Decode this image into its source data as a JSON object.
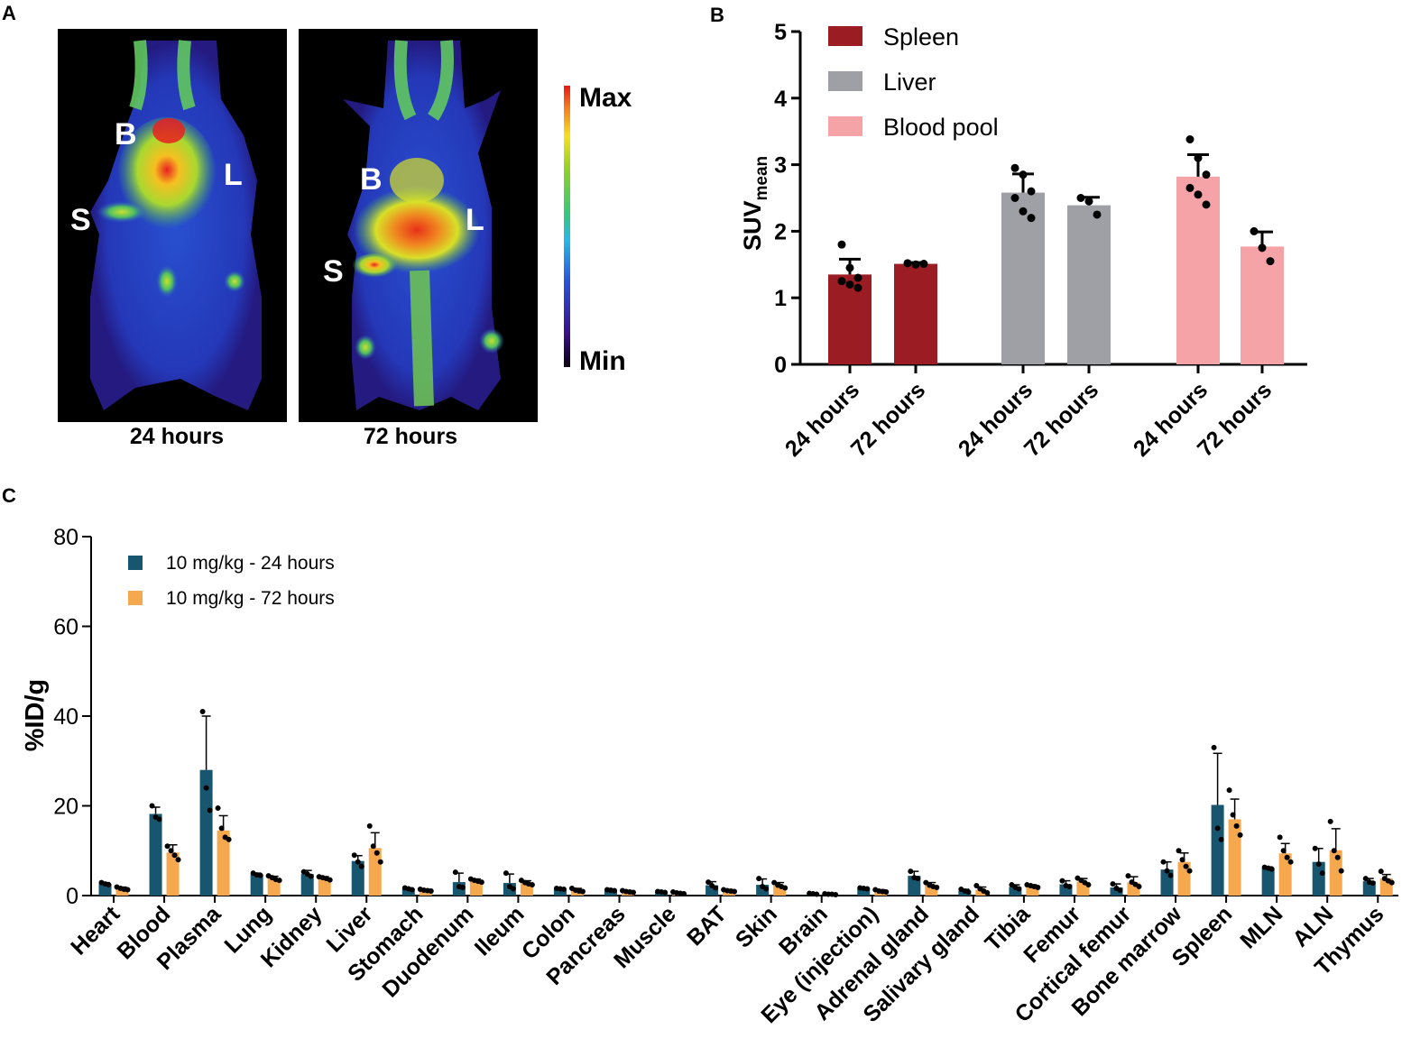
{
  "panel_a": {
    "letter": "A",
    "images": [
      {
        "caption": "24 hours",
        "labels": {
          "B": "B",
          "L": "L",
          "S": "S"
        }
      },
      {
        "caption": "72 hours",
        "labels": {
          "B": "B",
          "L": "L",
          "S": "S"
        }
      }
    ],
    "colorbar": {
      "max_label": "Max",
      "min_label": "Min"
    }
  },
  "panel_b": {
    "letter": "B",
    "colors": {
      "Spleen": "#9b1c22",
      "Liver": "#9fa0a5",
      "Blood pool": "#f5a3a7"
    }
  },
  "panel_c": {
    "letter": "C",
    "colors": {
      "24h": "#17566e",
      "72h": "#f6a84e"
    }
  },
  "chart_data": [
    {
      "id": "B",
      "type": "bar",
      "ylabel": "SUV",
      "ylabel_subscript": "mean",
      "ylim": [
        0,
        5
      ],
      "yticks": [
        "0",
        "1",
        "2",
        "3",
        "4",
        "5"
      ],
      "legend": [
        "Spleen",
        "Liver",
        "Blood pool"
      ],
      "groups": [
        {
          "name": "Spleen",
          "bars": [
            {
              "label": "24 hours",
              "value": 1.35,
              "error": 0.23,
              "points": [
                1.8,
                1.45,
                1.3,
                1.25,
                1.2,
                1.15
              ]
            },
            {
              "label": "72 hours",
              "value": 1.51,
              "error": 0.02,
              "points": [
                1.52,
                1.5,
                1.51
              ]
            }
          ]
        },
        {
          "name": "Liver",
          "bars": [
            {
              "label": "24 hours",
              "value": 2.58,
              "error": 0.28,
              "points": [
                2.95,
                2.85,
                2.6,
                2.5,
                2.3,
                2.2
              ]
            },
            {
              "label": "72 hours",
              "value": 2.39,
              "error": 0.12,
              "points": [
                2.5,
                2.45,
                2.25
              ]
            }
          ]
        },
        {
          "name": "Blood pool",
          "bars": [
            {
              "label": "24 hours",
              "value": 2.82,
              "error": 0.33,
              "points": [
                3.38,
                3.1,
                2.85,
                2.65,
                2.55,
                2.4
              ]
            },
            {
              "label": "72 hours",
              "value": 1.77,
              "error": 0.22,
              "points": [
                2.0,
                1.75,
                1.55
              ]
            }
          ]
        }
      ]
    },
    {
      "id": "C",
      "type": "bar",
      "ylabel": "%ID/g",
      "ylim": [
        0,
        80
      ],
      "yticks": [
        "0",
        "20",
        "40",
        "60",
        "80"
      ],
      "series": [
        {
          "name": "10 mg/kg - 24 hours",
          "values": [
            2.6,
            18.2,
            28.0,
            4.7,
            4.8,
            7.7,
            1.5,
            3.0,
            2.8,
            1.5,
            1.2,
            0.8,
            2.3,
            2.4,
            0.4,
            1.6,
            4.4,
            1.1,
            1.9,
            2.5,
            1.8,
            5.8,
            20.2,
            6.1,
            7.5,
            3.2
          ],
          "errors": [
            0.3,
            1.5,
            12.0,
            0.3,
            0.8,
            1.2,
            0.2,
            2.0,
            2.0,
            0.1,
            0.1,
            0.1,
            0.8,
            1.3,
            0.1,
            0.1,
            1.0,
            0.3,
            0.5,
            0.8,
            0.8,
            1.7,
            11.5,
            0.3,
            3.0,
            0.6
          ],
          "points": [
            [
              2.9,
              2.6,
              2.4
            ],
            [
              20.0,
              17.5,
              17.0
            ],
            [
              41.0,
              24.0,
              19.0
            ],
            [
              5.0,
              4.6,
              4.5
            ],
            [
              5.3,
              4.8,
              4.3
            ],
            [
              9.0,
              7.5,
              6.5
            ],
            [
              1.7,
              1.5,
              1.3
            ],
            [
              5.2,
              2.0,
              1.8
            ],
            [
              5.0,
              2.0,
              1.5
            ],
            [
              1.6,
              1.5,
              1.4
            ],
            [
              1.3,
              1.2,
              1.1
            ],
            [
              0.9,
              0.8,
              0.7
            ],
            [
              3.0,
              2.2,
              1.7
            ],
            [
              3.8,
              2.0,
              1.5
            ],
            [
              0.5,
              0.4,
              0.3
            ],
            [
              1.7,
              1.6,
              1.5
            ],
            [
              5.4,
              4.0,
              3.8
            ],
            [
              1.4,
              1.0,
              0.8
            ],
            [
              2.4,
              1.8,
              1.5
            ],
            [
              3.3,
              2.2,
              2.0
            ],
            [
              2.6,
              1.6,
              1.2
            ],
            [
              7.5,
              5.5,
              4.5
            ],
            [
              33.0,
              15.0,
              12.5
            ],
            [
              6.3,
              6.1,
              5.9
            ],
            [
              10.5,
              7.0,
              5.0
            ],
            [
              3.8,
              3.0,
              2.8
            ]
          ]
        },
        {
          "name": "10 mg/kg - 72 hours",
          "values": [
            1.6,
            9.6,
            14.5,
            3.9,
            3.9,
            10.6,
            1.2,
            3.3,
            2.8,
            1.2,
            0.9,
            0.6,
            1.1,
            2.2,
            0.3,
            1.0,
            2.3,
            1.3,
            2.1,
            3.1,
            2.9,
            7.5,
            17.0,
            9.4,
            10.1,
            3.8
          ],
          "errors": [
            0.3,
            1.7,
            3.3,
            0.4,
            0.3,
            3.4,
            0.2,
            0.4,
            0.5,
            0.4,
            0.2,
            0.2,
            0.2,
            0.7,
            0.1,
            0.3,
            0.6,
            0.6,
            0.3,
            0.7,
            1.3,
            2.0,
            4.5,
            2.2,
            4.8,
            0.9
          ],
          "points": [
            [
              1.9,
              1.6,
              1.4,
              1.3
            ],
            [
              11.0,
              10.0,
              9.0,
              8.0
            ],
            [
              19.5,
              15.0,
              13.0,
              12.5
            ],
            [
              4.4,
              4.0,
              3.6,
              3.4
            ],
            [
              4.2,
              4.0,
              3.8,
              3.5
            ],
            [
              15.5,
              11.0,
              9.5,
              7.5
            ],
            [
              1.4,
              1.2,
              1.1,
              1.0
            ],
            [
              3.7,
              3.4,
              3.2,
              3.0
            ],
            [
              3.4,
              2.9,
              2.6,
              2.4
            ],
            [
              1.6,
              1.2,
              1.0,
              0.9
            ],
            [
              1.1,
              0.9,
              0.8,
              0.7
            ],
            [
              0.8,
              0.6,
              0.5,
              0.4
            ],
            [
              1.3,
              1.1,
              1.0,
              0.9
            ],
            [
              2.9,
              2.3,
              2.0,
              1.7
            ],
            [
              0.4,
              0.3,
              0.3,
              0.2
            ],
            [
              1.3,
              1.0,
              0.9,
              0.8
            ],
            [
              2.9,
              2.3,
              2.0,
              1.8
            ],
            [
              2.2,
              1.5,
              1.0,
              0.6
            ],
            [
              2.4,
              2.2,
              2.0,
              1.8
            ],
            [
              3.9,
              3.4,
              2.9,
              2.4
            ],
            [
              4.4,
              3.0,
              2.5,
              2.0
            ],
            [
              10.0,
              8.0,
              6.5,
              5.5
            ],
            [
              23.5,
              18.0,
              15.5,
              13.5
            ],
            [
              13.0,
              10.0,
              8.5,
              7.5
            ],
            [
              16.5,
              10.0,
              8.5,
              5.5
            ],
            [
              5.4,
              3.8,
              3.3,
              2.9
            ]
          ]
        }
      ],
      "categories": [
        "Heart",
        "Blood",
        "Plasma",
        "Lung",
        "Kidney",
        "Liver",
        "Stomach",
        "Duodenum",
        "Ileum",
        "Colon",
        "Pancreas",
        "Muscle",
        "BAT",
        "Skin",
        "Brain",
        "Eye (injection)",
        "Adrenal gland",
        "Salivary gland",
        "Tibia",
        "Femur",
        "Cortical femur",
        "Bone marrow",
        "Spleen",
        "MLN",
        "ALN",
        "Thymus"
      ]
    }
  ]
}
